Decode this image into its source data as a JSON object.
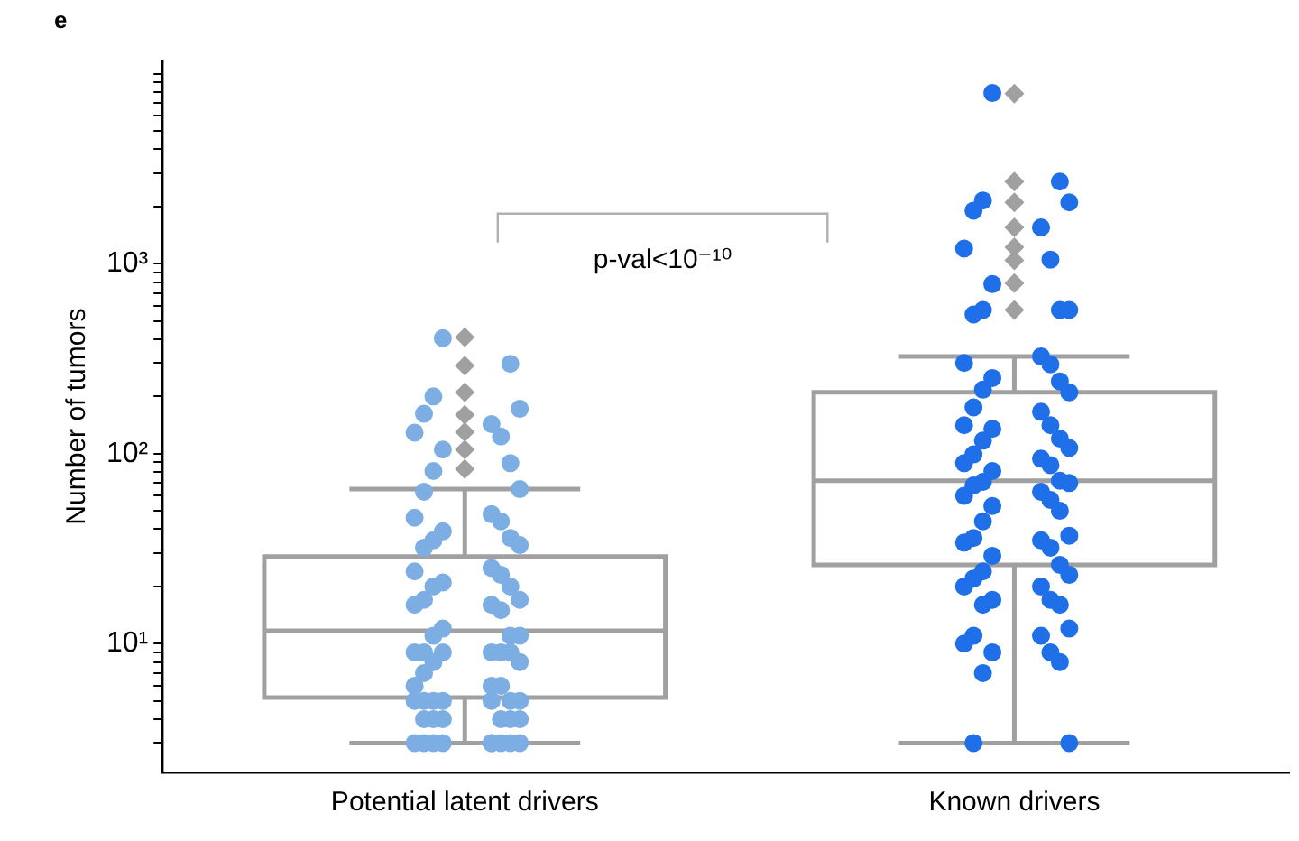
{
  "chart_data": {
    "type": "box",
    "title": "e",
    "ylabel": "Number of tumors",
    "categories": [
      "Potential latent drivers",
      "Known drivers"
    ],
    "log": "y",
    "grid": false,
    "legend": false,
    "color": "#a0a0a0",
    "boxes": [
      {
        "low": 3,
        "q1": 5.2,
        "median": 11.7,
        "q3": 28.7,
        "high": 65,
        "outliers": [
          410,
          290,
          210,
          160,
          130,
          105,
          83
        ]
      },
      {
        "low": 3,
        "q1": 26,
        "median": 72,
        "q3": 210,
        "high": 325,
        "outliers": [
          7850,
          2700,
          2100,
          1550,
          1220,
          1040,
          790,
          570
        ]
      }
    ],
    "ylim": [
      2.1,
      11700
    ],
    "yticks": [
      {
        "value": 3,
        "label": null
      },
      {
        "value": 4,
        "label": null
      },
      {
        "value": 5,
        "label": null
      },
      {
        "value": 6,
        "label": null
      },
      {
        "value": 7,
        "label": null
      },
      {
        "value": 8,
        "label": null
      },
      {
        "value": 9,
        "label": null
      },
      {
        "value": 10,
        "label": "10¹"
      },
      {
        "value": 20,
        "label": null
      },
      {
        "value": 30,
        "label": null
      },
      {
        "value": 40,
        "label": null
      },
      {
        "value": 50,
        "label": null
      },
      {
        "value": 60,
        "label": null
      },
      {
        "value": 70,
        "label": null
      },
      {
        "value": 80,
        "label": null
      },
      {
        "value": 90,
        "label": null
      },
      {
        "value": 100,
        "label": "10²"
      },
      {
        "value": 200,
        "label": null
      },
      {
        "value": 300,
        "label": null
      },
      {
        "value": 400,
        "label": null
      },
      {
        "value": 500,
        "label": null
      },
      {
        "value": 600,
        "label": null
      },
      {
        "value": 700,
        "label": null
      },
      {
        "value": 800,
        "label": null
      },
      {
        "value": 900,
        "label": null
      },
      {
        "value": 1000,
        "label": "10³"
      },
      {
        "value": 2000,
        "label": null
      },
      {
        "value": 3000,
        "label": null
      },
      {
        "value": 4000,
        "label": null
      },
      {
        "value": 5000,
        "label": null
      },
      {
        "value": 6000,
        "label": null
      },
      {
        "value": 7000,
        "label": null
      },
      {
        "value": 8000,
        "label": null
      },
      {
        "value": 9000,
        "label": null
      },
      {
        "value": 10000,
        "label": null
      }
    ],
    "annotations": [
      "p-val<10⁻¹⁰"
    ],
    "series": [
      {
        "type": "scatter",
        "marker": "circle",
        "color": "#7daee3",
        "x": [
          "Potential latent drivers",
          "Potential latent drivers",
          "Potential latent drivers",
          "Potential latent drivers",
          "Potential latent drivers",
          "Potential latent drivers",
          "Potential latent drivers",
          "Potential latent drivers",
          "Potential latent drivers",
          "Potential latent drivers",
          "Potential latent drivers",
          "Potential latent drivers",
          "Potential latent drivers",
          "Potential latent drivers",
          "Potential latent drivers",
          "Potential latent drivers",
          "Potential latent drivers",
          "Potential latent drivers",
          "Potential latent drivers",
          "Potential latent drivers",
          "Potential latent drivers",
          "Potential latent drivers",
          "Potential latent drivers",
          "Potential latent drivers",
          "Potential latent drivers",
          "Potential latent drivers",
          "Potential latent drivers",
          "Potential latent drivers",
          "Potential latent drivers",
          "Potential latent drivers",
          "Potential latent drivers",
          "Potential latent drivers",
          "Potential latent drivers",
          "Potential latent drivers",
          "Potential latent drivers",
          "Potential latent drivers",
          "Potential latent drivers",
          "Potential latent drivers",
          "Potential latent drivers",
          "Potential latent drivers",
          "Potential latent drivers",
          "Potential latent drivers",
          "Potential latent drivers",
          "Potential latent drivers",
          "Potential latent drivers",
          "Potential latent drivers",
          "Potential latent drivers",
          "Potential latent drivers",
          "Potential latent drivers",
          "Potential latent drivers",
          "Potential latent drivers",
          "Potential latent drivers",
          "Potential latent drivers",
          "Potential latent drivers",
          "Potential latent drivers",
          "Potential latent drivers",
          "Potential latent drivers",
          "Potential latent drivers",
          "Potential latent drivers",
          "Potential latent drivers",
          "Potential latent drivers",
          "Potential latent drivers",
          "Potential latent drivers",
          "Potential latent drivers",
          "Potential latent drivers",
          "Potential latent drivers",
          "Potential latent drivers",
          "Potential latent drivers",
          "Potential latent drivers",
          "Potential latent drivers"
        ],
        "values": [
          405,
          297,
          200,
          172,
          162,
          143,
          129,
          123,
          105,
          89,
          81,
          65,
          63,
          48,
          46,
          44,
          39,
          36,
          35,
          33,
          32,
          25,
          24,
          23,
          21,
          20,
          20,
          17,
          17,
          16,
          16,
          15,
          12,
          11,
          11,
          11,
          9,
          9,
          9,
          9,
          9,
          9,
          8,
          8,
          7,
          6,
          6,
          6,
          5,
          5,
          5,
          5,
          5,
          5,
          5,
          4,
          4,
          4,
          4,
          4,
          4,
          3,
          3,
          3,
          3,
          3,
          3,
          3,
          3,
          3
        ]
      },
      {
        "type": "scatter",
        "marker": "circle",
        "color": "#1f6fe8",
        "x": [
          "Known drivers",
          "Known drivers",
          "Known drivers",
          "Known drivers",
          "Known drivers",
          "Known drivers",
          "Known drivers",
          "Known drivers",
          "Known drivers",
          "Known drivers",
          "Known drivers",
          "Known drivers",
          "Known drivers",
          "Known drivers",
          "Known drivers",
          "Known drivers",
          "Known drivers",
          "Known drivers",
          "Known drivers",
          "Known drivers",
          "Known drivers",
          "Known drivers",
          "Known drivers",
          "Known drivers",
          "Known drivers",
          "Known drivers",
          "Known drivers",
          "Known drivers",
          "Known drivers",
          "Known drivers",
          "Known drivers",
          "Known drivers",
          "Known drivers",
          "Known drivers",
          "Known drivers",
          "Known drivers",
          "Known drivers",
          "Known drivers",
          "Known drivers",
          "Known drivers",
          "Known drivers",
          "Known drivers",
          "Known drivers",
          "Known drivers",
          "Known drivers",
          "Known drivers",
          "Known drivers",
          "Known drivers",
          "Known drivers",
          "Known drivers",
          "Known drivers",
          "Known drivers",
          "Known drivers",
          "Known drivers",
          "Known drivers",
          "Known drivers",
          "Known drivers",
          "Known drivers",
          "Known drivers",
          "Known drivers",
          "Known drivers",
          "Known drivers",
          "Known drivers",
          "Known drivers",
          "Known drivers",
          "Known drivers",
          "Known drivers",
          "Known drivers",
          "Known drivers"
        ],
        "values": [
          7900,
          2700,
          2150,
          2100,
          1900,
          1550,
          1200,
          1050,
          780,
          570,
          570,
          570,
          540,
          325,
          300,
          295,
          250,
          240,
          217,
          210,
          175,
          166,
          141,
          141,
          135,
          120,
          117,
          107,
          99,
          94,
          89,
          87,
          81,
          72,
          71,
          70,
          68,
          63,
          60,
          57,
          53,
          50,
          44,
          37,
          36,
          35,
          34,
          32,
          29,
          26,
          24,
          23,
          22,
          20,
          20,
          17,
          17,
          16,
          16,
          12,
          11,
          11,
          10,
          9,
          9,
          8,
          7,
          3,
          3
        ]
      }
    ]
  }
}
